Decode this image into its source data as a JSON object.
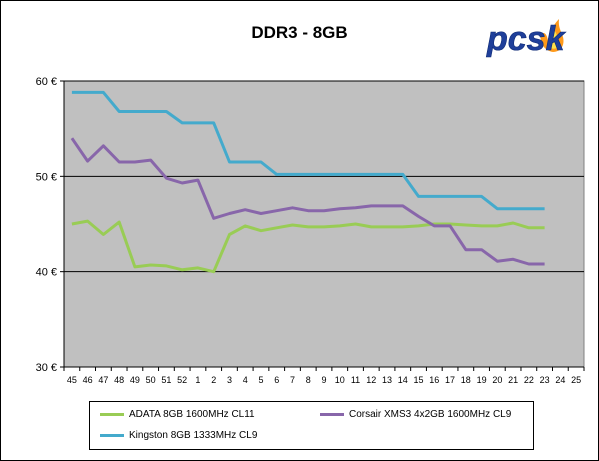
{
  "chart_data": {
    "type": "line",
    "title": "DDR3 - 8GB",
    "xlabel": "",
    "ylabel": "",
    "ylim": [
      30,
      60
    ],
    "y_ticks": [
      "30 €",
      "40 €",
      "50 €",
      "60 €"
    ],
    "y_tick_values": [
      30,
      40,
      50,
      60
    ],
    "grid": true,
    "plot_background": "#c0c0c0",
    "legend_position": "bottom",
    "categories": [
      "45",
      "46",
      "47",
      "48",
      "49",
      "50",
      "51",
      "52",
      "1",
      "2",
      "3",
      "4",
      "5",
      "6",
      "7",
      "8",
      "9",
      "10",
      "11",
      "12",
      "13",
      "14",
      "15",
      "16",
      "17",
      "18",
      "19",
      "20",
      "21",
      "22",
      "23",
      "24",
      "25"
    ],
    "series": [
      {
        "name": "ADATA 8GB 1600MHz CL11",
        "color": "#99cc55",
        "values": [
          45.0,
          45.3,
          43.9,
          45.2,
          40.5,
          40.7,
          40.6,
          40.2,
          40.4,
          40.0,
          43.9,
          44.8,
          44.3,
          44.6,
          44.9,
          44.7,
          44.7,
          44.8,
          45.0,
          44.7,
          44.7,
          44.7,
          44.8,
          45.0,
          45.0,
          44.9,
          44.8,
          44.8,
          45.1,
          44.6,
          44.6,
          null,
          null
        ]
      },
      {
        "name": "Corsair XMS3 4x2GB 1600MHz CL9",
        "color": "#8866aa",
        "values": [
          54.0,
          51.6,
          53.2,
          51.5,
          51.5,
          51.7,
          49.8,
          49.3,
          49.6,
          45.6,
          46.1,
          46.5,
          46.1,
          46.4,
          46.7,
          46.4,
          46.4,
          46.6,
          46.7,
          46.9,
          46.9,
          46.9,
          45.8,
          44.8,
          44.8,
          42.3,
          42.3,
          41.1,
          41.3,
          40.8,
          40.8,
          null,
          null
        ]
      },
      {
        "name": "Kingston 8GB 1333MHz CL9",
        "color": "#44aacc",
        "values": [
          58.8,
          58.8,
          58.8,
          56.8,
          56.8,
          56.8,
          56.8,
          55.6,
          55.6,
          55.6,
          51.5,
          51.5,
          51.5,
          50.2,
          50.2,
          50.2,
          50.2,
          50.2,
          50.2,
          50.2,
          50.2,
          50.2,
          47.9,
          47.9,
          47.9,
          47.9,
          47.9,
          46.6,
          46.6,
          46.6,
          46.6,
          null,
          null
        ]
      }
    ]
  },
  "logo": {
    "text": "pcsk"
  }
}
